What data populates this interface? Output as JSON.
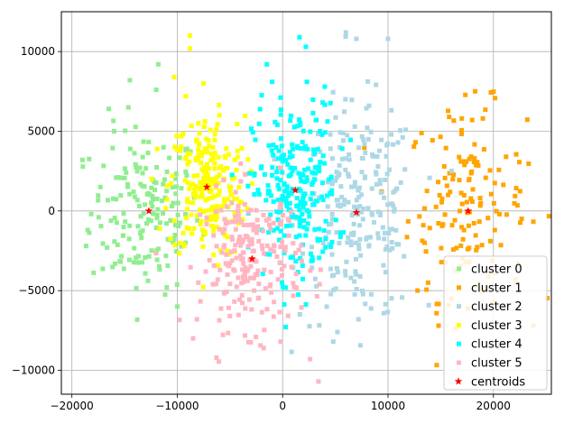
{
  "chart_data": {
    "type": "scatter",
    "title": "",
    "xlabel": "",
    "ylabel": "",
    "xlim": [
      -21000,
      25500
    ],
    "ylim": [
      -11500,
      12500
    ],
    "grid": true,
    "legend_position": "lower-right",
    "x_ticks": [
      -20000,
      -10000,
      0,
      10000,
      20000
    ],
    "x_tick_labels": [
      "−20000",
      "−10000",
      "0",
      "10000",
      "20000"
    ],
    "y_ticks": [
      -10000,
      -5000,
      0,
      5000,
      10000
    ],
    "y_tick_labels": [
      "−10000",
      "−5000",
      "0",
      "5000",
      "10000"
    ],
    "series": [
      {
        "name": "cluster 0",
        "color": "#90ee90",
        "marker": "square",
        "center": [
          -13000,
          0
        ],
        "spread": [
          2600,
          2600
        ],
        "count": 170,
        "extra": [
          [
            -16500,
            6400
          ],
          [
            -14500,
            8200
          ],
          [
            -11800,
            9200
          ],
          [
            -19000,
            3200
          ],
          [
            -18500,
            -1200
          ],
          [
            -16000,
            5000
          ],
          [
            -12000,
            7600
          ],
          [
            -11000,
            -4800
          ],
          [
            -10000,
            -6000
          ]
        ]
      },
      {
        "name": "cluster 1",
        "color": "#ffa500",
        "marker": "square",
        "center": [
          17500,
          500
        ],
        "spread": [
          2800,
          3000
        ],
        "count": 150,
        "extra": [
          [
            15800,
            5900
          ],
          [
            17000,
            5800
          ],
          [
            19000,
            5800
          ],
          [
            12800,
            -5000
          ],
          [
            13800,
            -4500
          ],
          [
            16000,
            -5500
          ],
          [
            14800,
            -7200
          ],
          [
            21200,
            3400
          ]
        ]
      },
      {
        "name": "cluster 2",
        "color": "#add8e6",
        "marker": "square",
        "center": [
          7200,
          -200
        ],
        "spread": [
          2800,
          3400
        ],
        "count": 230,
        "extra": [
          [
            6000,
            11200
          ],
          [
            7000,
            10800
          ],
          [
            10000,
            10800
          ],
          [
            10300,
            4800
          ],
          [
            8200,
            6600
          ],
          [
            5200,
            -7600
          ],
          [
            4800,
            -8200
          ],
          [
            7200,
            -6800
          ]
        ]
      },
      {
        "name": "cluster 3",
        "color": "#ffff00",
        "marker": "square",
        "center": [
          -7200,
          1500
        ],
        "spread": [
          1800,
          2200
        ],
        "count": 240,
        "extra": [
          [
            -8800,
            11000
          ],
          [
            -8800,
            10200
          ],
          [
            -10300,
            8400
          ],
          [
            -7500,
            8000
          ],
          [
            -9200,
            7200
          ],
          [
            -6000,
            6000
          ],
          [
            -8000,
            5500
          ]
        ]
      },
      {
        "name": "cluster 4",
        "color": "#00ffff",
        "marker": "square",
        "center": [
          1200,
          1200
        ],
        "spread": [
          2000,
          2700
        ],
        "count": 250,
        "extra": [
          [
            1600,
            10900
          ],
          [
            2200,
            10300
          ],
          [
            -1500,
            9200
          ],
          [
            -1000,
            8100
          ],
          [
            2300,
            8100
          ],
          [
            4000,
            7800
          ],
          [
            3800,
            6800
          ]
        ]
      },
      {
        "name": "cluster 5",
        "color": "#ffb6c1",
        "marker": "square",
        "center": [
          -3000,
          -3000
        ],
        "spread": [
          2400,
          2200
        ],
        "count": 220,
        "extra": [
          [
            -8500,
            -8000
          ],
          [
            -1800,
            -8600
          ],
          [
            3400,
            -10700
          ],
          [
            -200,
            -8200
          ],
          [
            2600,
            -9300
          ],
          [
            -8000,
            -4500
          ]
        ]
      },
      {
        "name": "centroids",
        "color": "#ff0000",
        "marker": "star",
        "points": [
          [
            -12700,
            0
          ],
          [
            17600,
            0
          ],
          [
            7000,
            -100
          ],
          [
            -7200,
            1500
          ],
          [
            1200,
            1300
          ],
          [
            -2900,
            -3000
          ]
        ]
      }
    ]
  }
}
